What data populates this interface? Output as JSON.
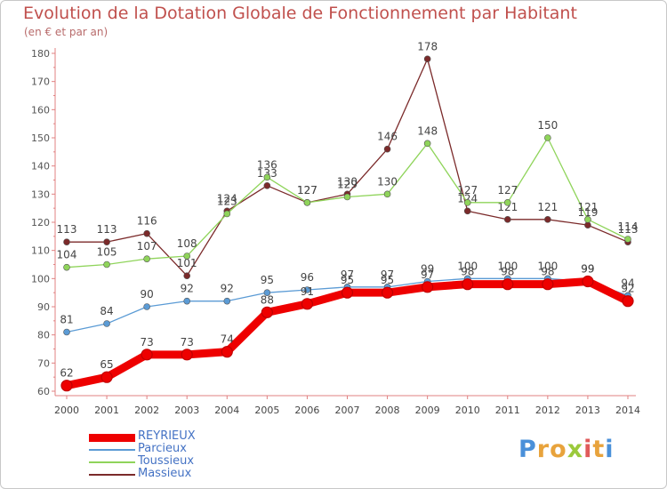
{
  "title": "Evolution de la Dotation Globale de Fonctionnement par Habitant",
  "subtitle": "(en € et par an)",
  "brand": {
    "text": "Proxiti",
    "colors": [
      "#4a90d9",
      "#e8a33c",
      "#e8a33c",
      "#9bc93b",
      "#e05a5a",
      "#e8a33c",
      "#4a90d9"
    ]
  },
  "chart_data": {
    "type": "line",
    "x": [
      "2000",
      "2001",
      "2002",
      "2003",
      "2004",
      "2005",
      "2006",
      "2007",
      "2008",
      "2009",
      "2010",
      "2011",
      "2012",
      "2013",
      "2014"
    ],
    "y_ticks": [
      "60",
      "70",
      "80",
      "90",
      "100",
      "110",
      "120",
      "130",
      "140",
      "150",
      "160",
      "170",
      "180"
    ],
    "ylim": [
      60,
      180
    ],
    "grid": false,
    "legend_position": "bottom-left",
    "series": [
      {
        "name": "Massieux",
        "color": "#7b2a2a",
        "values": [
          113,
          113,
          116,
          101,
          124,
          133,
          127,
          130,
          146,
          178,
          124,
          121,
          121,
          119,
          113
        ],
        "labels": [
          "113",
          "113",
          "116",
          "101",
          "124",
          "133",
          "127",
          "130",
          "146",
          "178",
          "124",
          "121",
          "121",
          "119",
          "113"
        ]
      },
      {
        "name": "Toussieux",
        "color": "#8fd45a",
        "values": [
          104,
          105,
          107,
          108,
          123,
          136,
          127,
          129,
          130,
          148,
          127,
          127,
          150,
          121,
          114
        ],
        "labels": [
          "104",
          "105",
          "107",
          "108",
          "123",
          "136",
          "127",
          "129",
          "130",
          "148",
          "127",
          "127",
          "150",
          "121",
          "114"
        ]
      },
      {
        "name": "Parcieux",
        "color": "#5b9bd5",
        "values": [
          81,
          84,
          90,
          92,
          92,
          95,
          96,
          97,
          97,
          99,
          100,
          100,
          100,
          99,
          94
        ],
        "labels": [
          "81",
          "84",
          "90",
          "92",
          "92",
          "95",
          "96",
          "97",
          "97",
          "99",
          "100",
          "100",
          "100",
          "99",
          "94"
        ]
      },
      {
        "name": "REYRIEUX",
        "color": "#ee0000",
        "values": [
          62,
          65,
          73,
          73,
          74,
          88,
          91,
          95,
          95,
          97,
          98,
          98,
          98,
          99,
          92
        ],
        "labels": [
          "62",
          "65",
          "73",
          "73",
          "74",
          "88",
          "91",
          "95",
          "95",
          "97",
          "98",
          "98",
          "98",
          "99",
          "92"
        ]
      }
    ],
    "legend": [
      {
        "name": "REYRIEUX",
        "color": "#ee0000",
        "width": "thick"
      },
      {
        "name": "Parcieux",
        "color": "#5b9bd5",
        "width": "thin"
      },
      {
        "name": "Toussieux",
        "color": "#8fd45a",
        "width": "thin"
      },
      {
        "name": "Massieux",
        "color": "#7b2a2a",
        "width": "thin"
      }
    ]
  }
}
